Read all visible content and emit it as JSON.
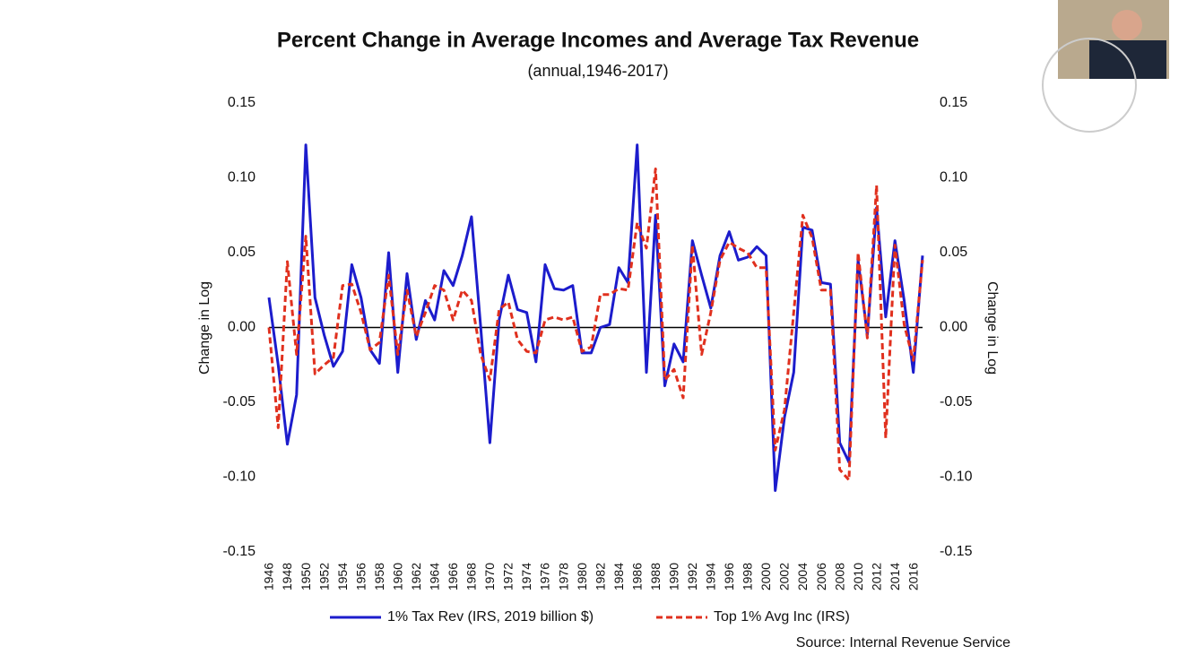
{
  "chart_data": {
    "type": "line",
    "title": "Percent Change in Average Incomes and Average Tax Revenue",
    "subtitle": "(annual,1946-2017)",
    "ylabel": "Change in Log",
    "y2label": "Change in Log",
    "source": "Source: Internal Revenue Service",
    "categories": [
      "1946",
      null,
      "1948",
      null,
      "1950",
      null,
      "1952",
      null,
      "1954",
      null,
      "1956",
      null,
      "1958",
      null,
      "1960",
      null,
      "1962",
      null,
      "1964",
      null,
      "1966",
      null,
      "1968",
      null,
      "1970",
      null,
      "1972",
      null,
      "1974",
      null,
      "1976",
      null,
      "1978",
      null,
      "1980",
      null,
      "1982",
      null,
      "1984",
      null,
      "1986",
      null,
      "1988",
      null,
      "1990",
      null,
      "1992",
      null,
      "1994",
      null,
      "1996",
      null,
      "1998",
      null,
      "2000",
      null,
      "2002",
      null,
      "2004",
      null,
      "2006",
      null,
      "2008",
      null,
      "2010",
      null,
      "2012",
      null,
      "2014",
      null,
      "2016",
      null
    ],
    "series": [
      {
        "name": "1% Tax Rev (IRS, 2019 billion $)",
        "color": "#1c1ccc",
        "dash": false,
        "values": [
          0.02,
          -0.025,
          -0.078,
          -0.045,
          0.122,
          0.02,
          -0.005,
          -0.026,
          -0.016,
          0.042,
          0.02,
          -0.015,
          -0.024,
          0.05,
          -0.03,
          0.036,
          -0.008,
          0.018,
          0.005,
          0.038,
          0.028,
          0.048,
          0.074,
          0.0,
          -0.077,
          0.005,
          0.035,
          0.012,
          0.01,
          -0.023,
          0.042,
          0.026,
          0.025,
          0.028,
          -0.017,
          -0.017,
          0.0,
          0.002,
          0.04,
          0.03,
          0.122,
          -0.03,
          0.075,
          -0.039,
          -0.011,
          -0.023,
          0.058,
          0.035,
          0.013,
          0.048,
          0.064,
          0.045,
          0.047,
          0.054,
          0.048,
          -0.109,
          -0.06,
          -0.03,
          0.067,
          0.065,
          0.03,
          0.029,
          -0.077,
          -0.09,
          0.045,
          -0.005,
          0.08,
          0.007,
          0.058,
          0.018,
          -0.03,
          0.048
        ]
      },
      {
        "name": "Top 1% Avg Inc (IRS)",
        "color": "#e0301e",
        "dash": true,
        "values": [
          0.0,
          -0.067,
          0.044,
          -0.018,
          0.061,
          -0.031,
          -0.025,
          -0.02,
          0.028,
          0.029,
          0.01,
          -0.015,
          -0.01,
          0.035,
          -0.018,
          0.025,
          -0.006,
          0.01,
          0.028,
          0.025,
          0.005,
          0.025,
          0.018,
          -0.018,
          -0.035,
          0.012,
          0.017,
          -0.008,
          -0.016,
          -0.017,
          0.005,
          0.007,
          0.005,
          0.007,
          -0.016,
          -0.013,
          0.022,
          0.022,
          0.026,
          0.025,
          0.07,
          0.053,
          0.106,
          -0.035,
          -0.028,
          -0.047,
          0.055,
          -0.018,
          0.01,
          0.045,
          0.057,
          0.053,
          0.05,
          0.04,
          0.04,
          -0.082,
          -0.055,
          0.01,
          0.075,
          0.06,
          0.025,
          0.025,
          -0.095,
          -0.102,
          0.05,
          -0.007,
          0.095,
          -0.074,
          0.055,
          0.002,
          -0.022,
          0.045
        ]
      }
    ],
    "ylim": [
      -0.15,
      0.15
    ],
    "yticks": [
      0.15,
      {
        "value": 0.1,
        "label": "0.10"
      },
      0.05,
      {
        "value": 0,
        "label": "0.00"
      },
      -0.05,
      {
        "value": -0.1,
        "label": "-0.10"
      },
      -0.15
    ],
    "y2lim": [
      -0.15,
      0.15
    ],
    "y2ticks": [
      0.15,
      {
        "value": 0.1,
        "label": "0.10"
      },
      0.05,
      {
        "value": 0,
        "label": "0.00"
      },
      -0.05,
      {
        "value": -0.1,
        "label": "-0.10"
      },
      -0.15
    ],
    "legend": "bottom"
  }
}
